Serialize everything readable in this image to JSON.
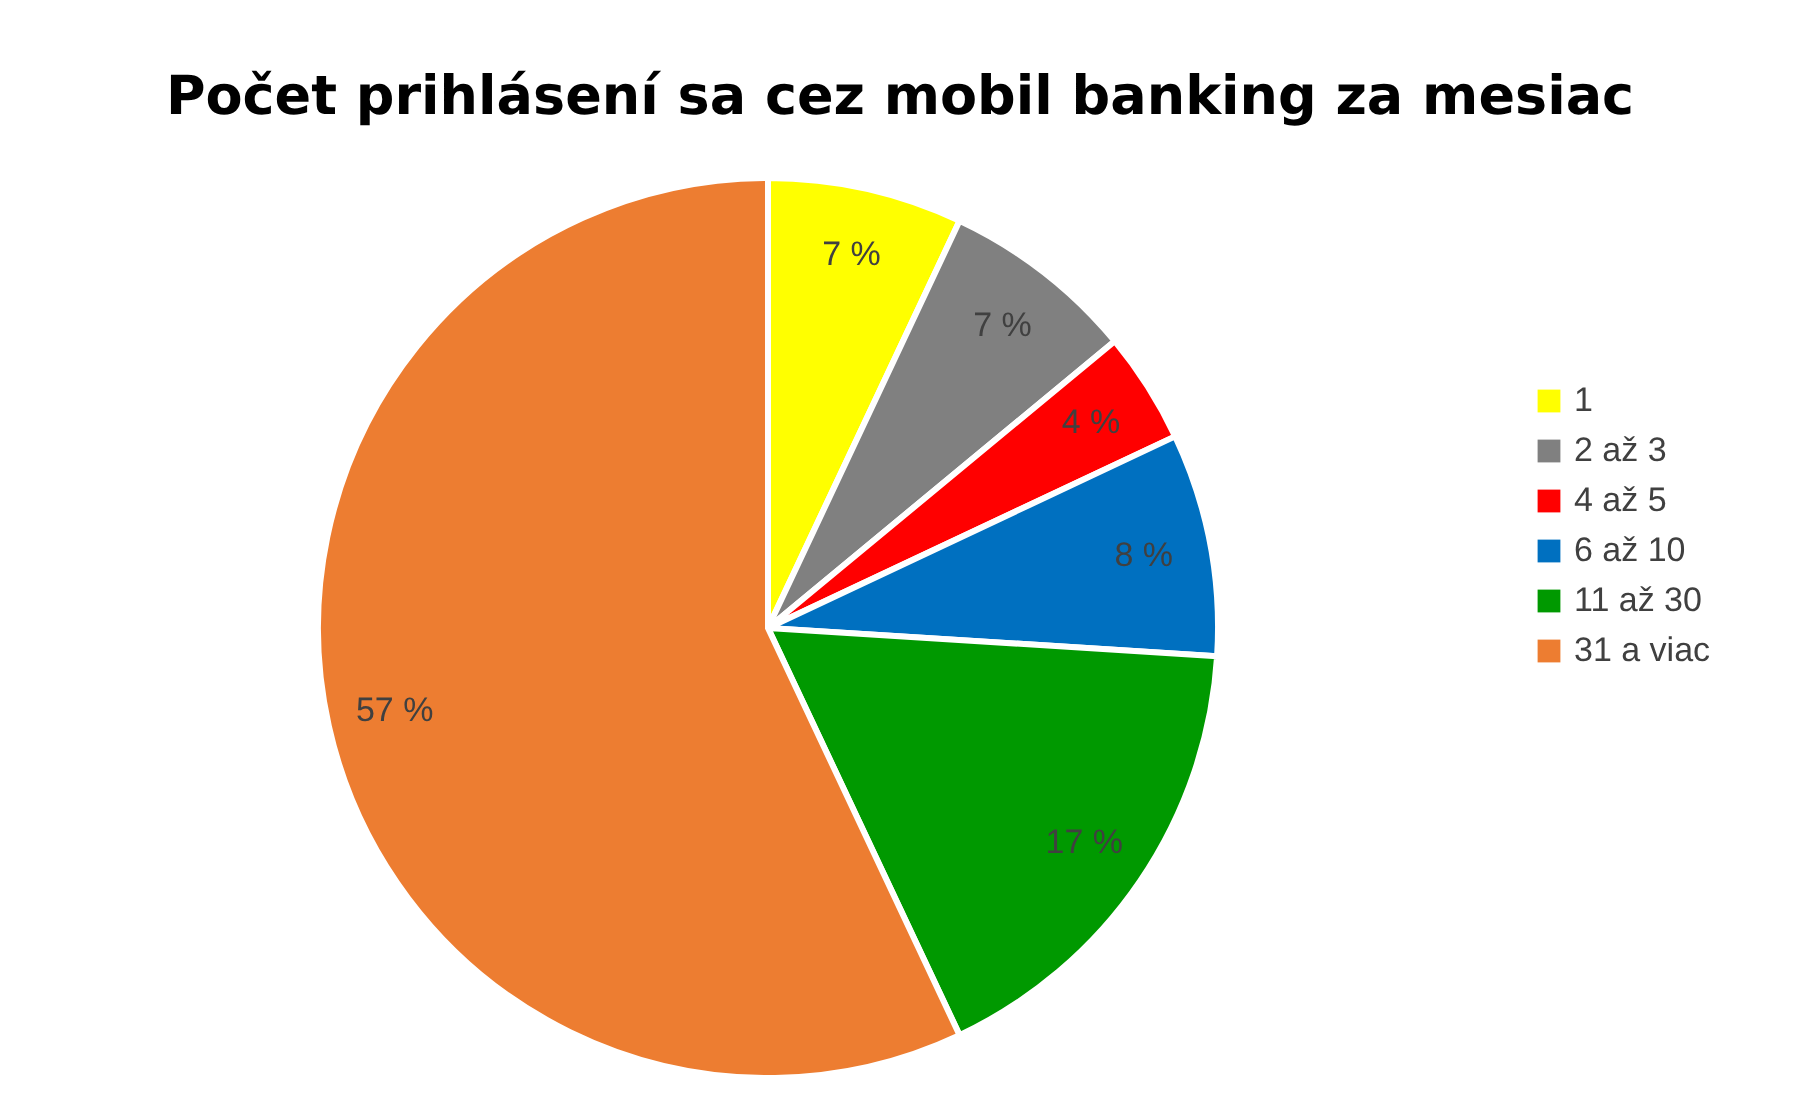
{
  "chart_data": {
    "type": "pie",
    "title": "Počet prihlásení sa cez mobil banking za mesiac",
    "categories": [
      "1",
      "2 až 3",
      "4 až 5",
      "6 až 10",
      "11 až 30",
      "31 a viac"
    ],
    "values": [
      7,
      7,
      4,
      8,
      17,
      57
    ],
    "value_labels": [
      "7 %",
      "7 %",
      "4 %",
      "8 %",
      "17 %",
      "57 %"
    ],
    "colors": [
      "#ffff00",
      "#808080",
      "#ff0000",
      "#0070c0",
      "#009900",
      "#ed7d31"
    ],
    "legend": "right"
  }
}
